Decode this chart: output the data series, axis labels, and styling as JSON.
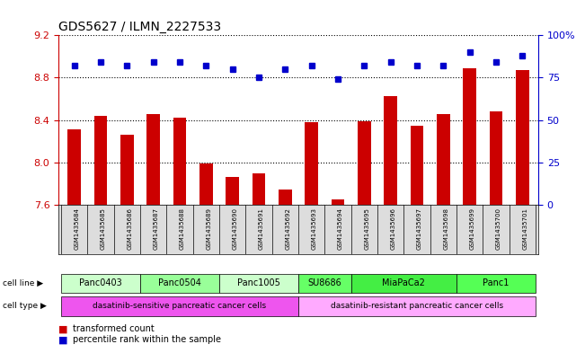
{
  "title": "GDS5627 / ILMN_2227533",
  "samples": [
    "GSM1435684",
    "GSM1435685",
    "GSM1435686",
    "GSM1435687",
    "GSM1435688",
    "GSM1435689",
    "GSM1435690",
    "GSM1435691",
    "GSM1435692",
    "GSM1435693",
    "GSM1435694",
    "GSM1435695",
    "GSM1435696",
    "GSM1435697",
    "GSM1435698",
    "GSM1435699",
    "GSM1435700",
    "GSM1435701"
  ],
  "transformed_count": [
    8.31,
    8.44,
    8.26,
    8.46,
    8.42,
    7.99,
    7.86,
    7.9,
    7.74,
    8.38,
    7.65,
    8.39,
    8.63,
    8.35,
    8.46,
    8.89,
    8.48,
    8.87
  ],
  "percentile_rank": [
    82,
    84,
    82,
    84,
    84,
    82,
    80,
    75,
    80,
    82,
    74,
    82,
    84,
    82,
    82,
    90,
    84,
    88
  ],
  "ylim_left": [
    7.6,
    9.2
  ],
  "ylim_right": [
    0,
    100
  ],
  "yticks_left": [
    7.6,
    8.0,
    8.4,
    8.8,
    9.2
  ],
  "yticks_right": [
    0,
    25,
    50,
    75,
    100
  ],
  "bar_color": "#cc0000",
  "dot_color": "#0000cc",
  "cell_lines": [
    {
      "label": "Panc0403",
      "start": 0,
      "end": 3,
      "color": "#ccffcc"
    },
    {
      "label": "Panc0504",
      "start": 3,
      "end": 6,
      "color": "#99ff99"
    },
    {
      "label": "Panc1005",
      "start": 6,
      "end": 9,
      "color": "#ccffcc"
    },
    {
      "label": "SU8686",
      "start": 9,
      "end": 11,
      "color": "#66ff66"
    },
    {
      "label": "MiaPaCa2",
      "start": 11,
      "end": 15,
      "color": "#44ee44"
    },
    {
      "label": "Panc1",
      "start": 15,
      "end": 18,
      "color": "#55ff55"
    }
  ],
  "cell_types": [
    {
      "label": "dasatinib-sensitive pancreatic cancer cells",
      "start": 0,
      "end": 9,
      "color": "#ee55ee"
    },
    {
      "label": "dasatinib-resistant pancreatic cancer cells",
      "start": 9,
      "end": 18,
      "color": "#ffaaff"
    }
  ],
  "legend_items": [
    {
      "label": "transformed count",
      "color": "#cc0000",
      "marker": "s"
    },
    {
      "label": "percentile rank within the sample",
      "color": "#0000cc",
      "marker": "s"
    }
  ],
  "dotted_line_color": "#333333",
  "grid_color": "#888888",
  "background_color": "#ffffff",
  "tick_label_color_left": "#cc0000",
  "tick_label_color_right": "#0000cc"
}
